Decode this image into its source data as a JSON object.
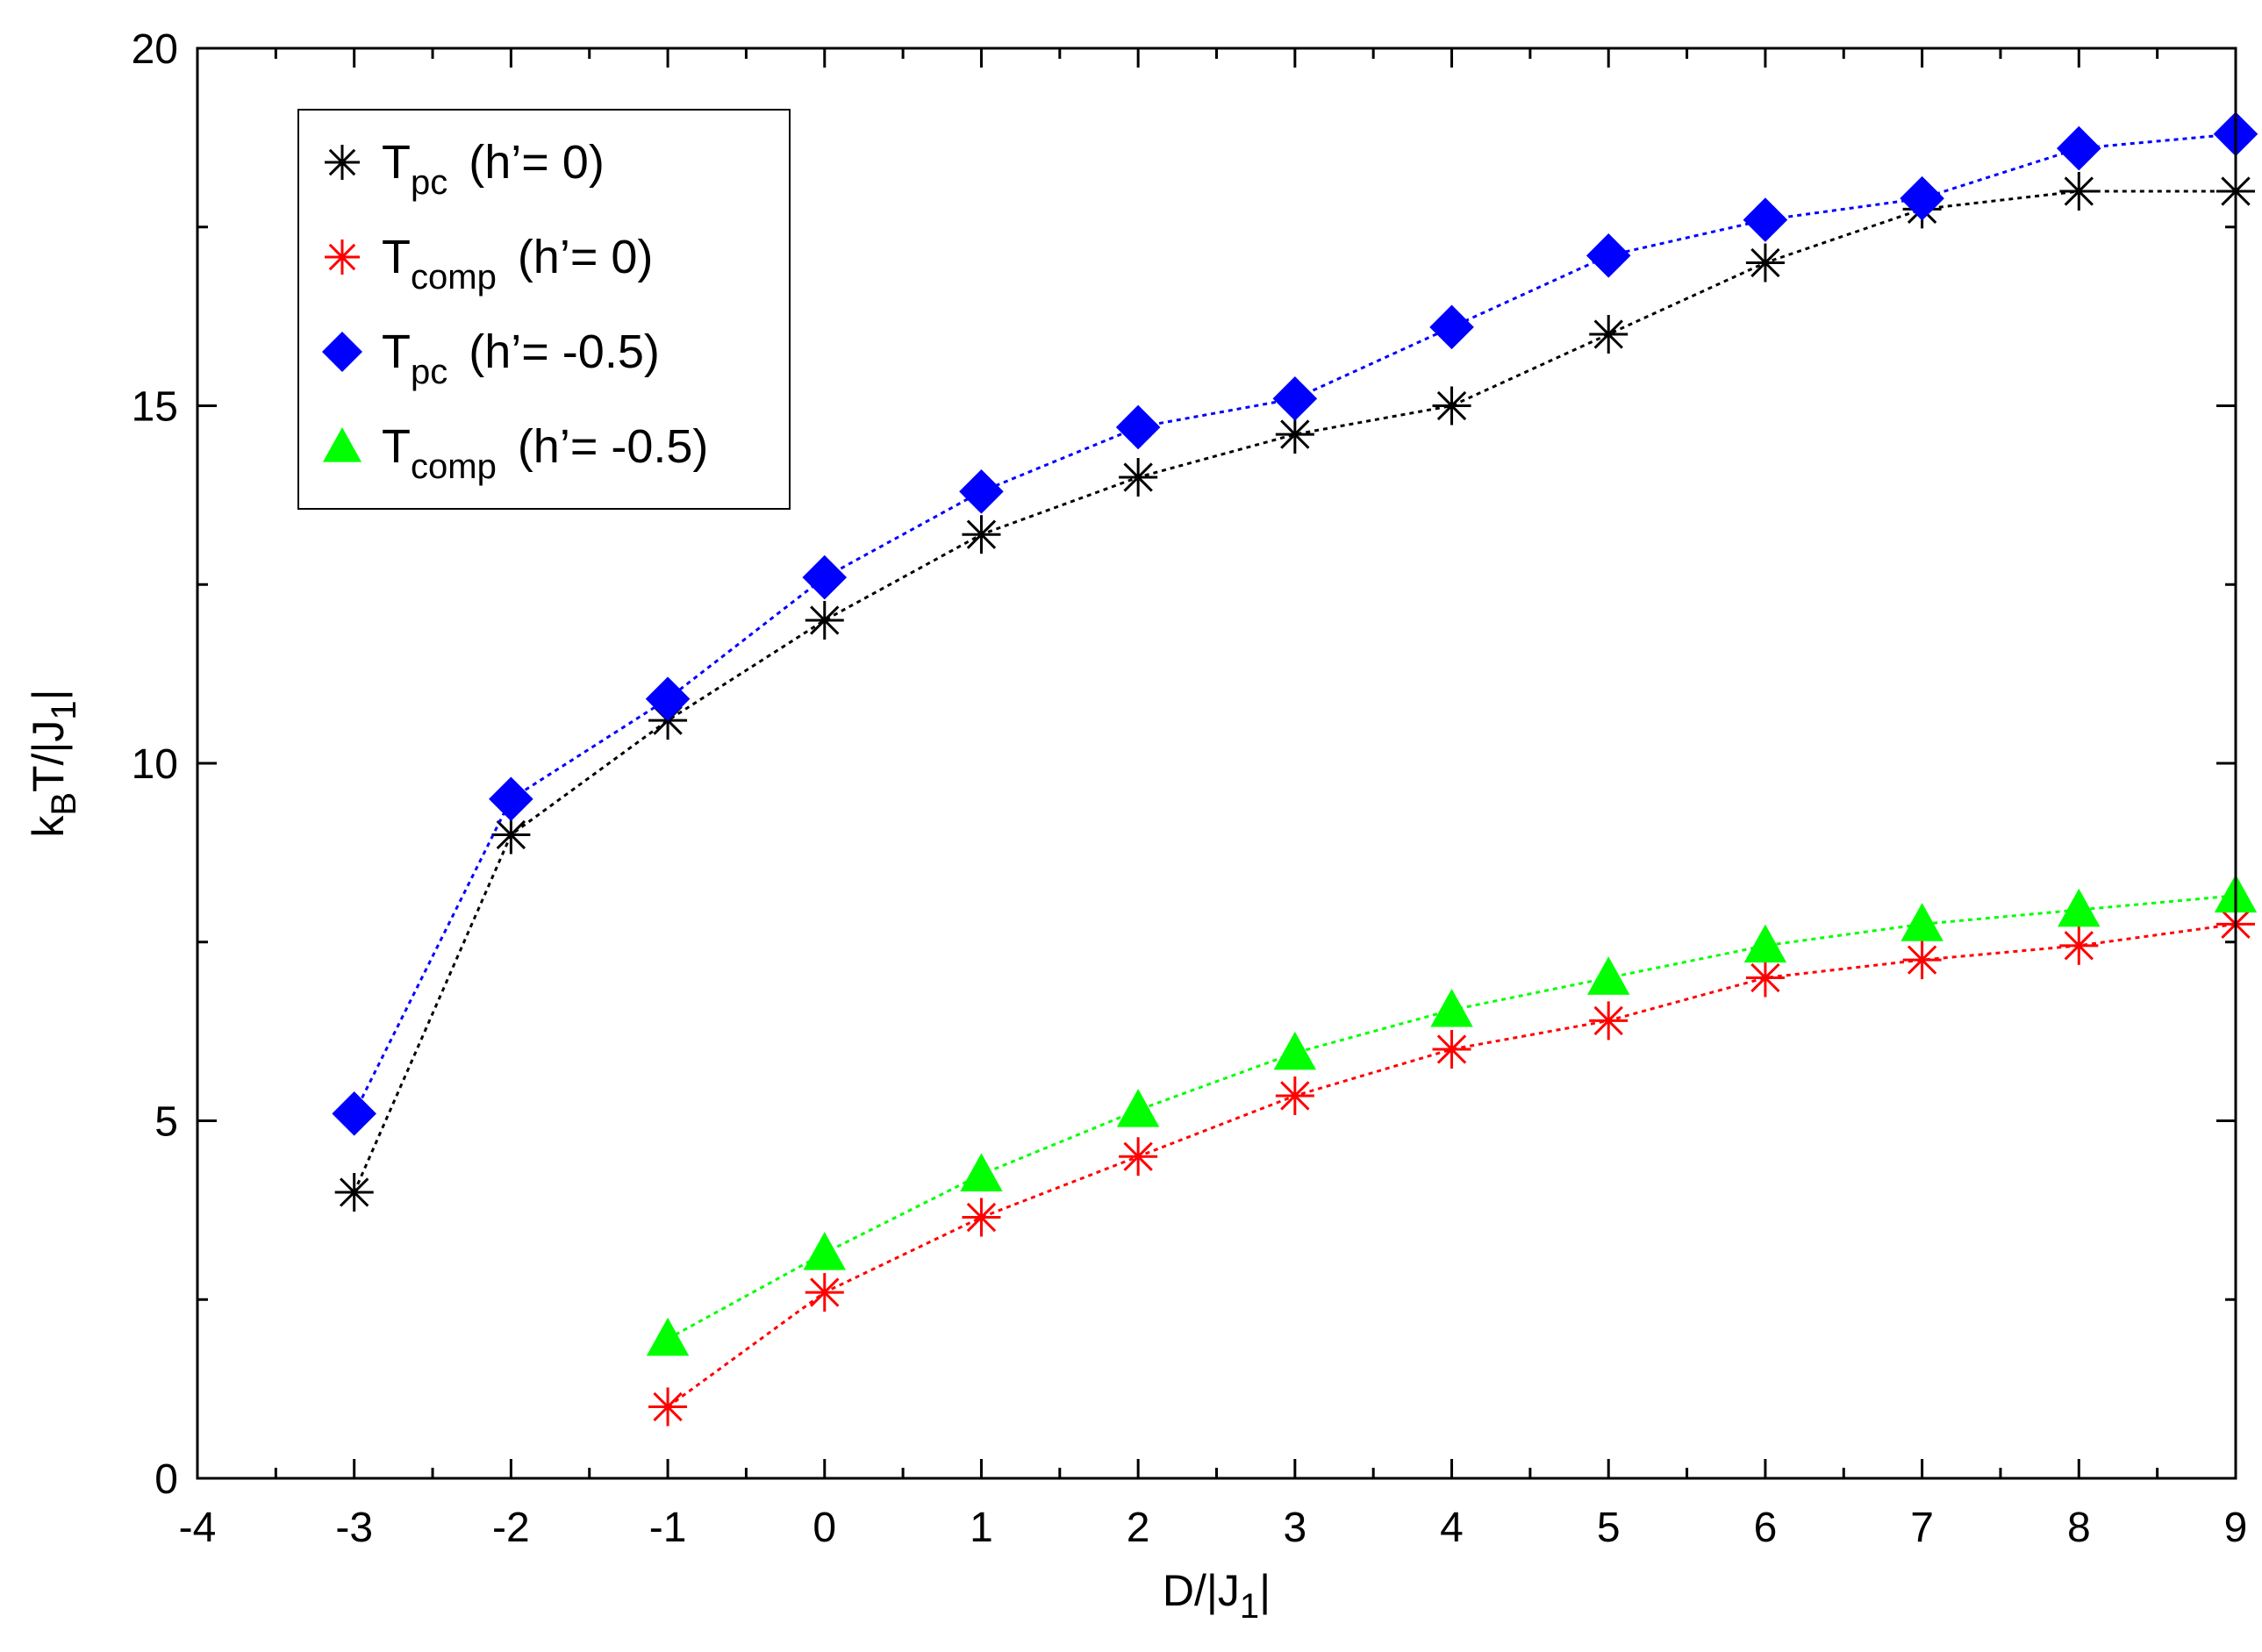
{
  "chart_data": {
    "type": "line",
    "title": "",
    "xlabel": {
      "main": "D/|J",
      "sub": "1",
      "tail": "|"
    },
    "ylabel": {
      "pre": "k",
      "sub1": "B",
      "mid": "T/|J",
      "sub2": "1",
      "tail": "|"
    },
    "xlim": [
      -4,
      9
    ],
    "ylim": [
      0,
      20
    ],
    "x_ticks": [
      -4,
      -3,
      -2,
      -1,
      0,
      1,
      2,
      3,
      4,
      5,
      6,
      7,
      8,
      9
    ],
    "y_ticks": [
      0,
      5,
      10,
      15,
      20
    ],
    "grid": false,
    "legend_position": "top-left",
    "series": [
      {
        "name": {
          "base": "T",
          "sub": "pc",
          "rest": "(h’= 0)"
        },
        "color": "#000000",
        "marker": "asterisk",
        "x": [
          -3,
          -2,
          -1,
          0,
          1,
          2,
          3,
          4,
          5,
          6,
          7,
          8,
          9
        ],
        "y": [
          4.0,
          9.0,
          10.6,
          12.0,
          13.2,
          14.0,
          14.6,
          15.0,
          16.0,
          17.0,
          17.75,
          18.0,
          18.0
        ]
      },
      {
        "name": {
          "base": "T",
          "sub": "comp",
          "rest": "(h’= 0)"
        },
        "color": "#ff0000",
        "marker": "asterisk",
        "x": [
          -1,
          0,
          1,
          2,
          3,
          4,
          5,
          6,
          7,
          8,
          9
        ],
        "y": [
          1.0,
          2.6,
          3.65,
          4.5,
          5.35,
          6.0,
          6.4,
          7.0,
          7.25,
          7.45,
          7.75
        ]
      },
      {
        "name": {
          "base": "T",
          "sub": "pc",
          "rest": "(h’= -0.5)"
        },
        "color": "#0000ff",
        "marker": "diamond",
        "x": [
          -3,
          -2,
          -1,
          0,
          1,
          2,
          3,
          4,
          5,
          6,
          7,
          8,
          9
        ],
        "y": [
          5.1,
          9.5,
          10.9,
          12.6,
          13.8,
          14.7,
          15.1,
          16.1,
          17.1,
          17.6,
          17.9,
          18.6,
          18.8
        ]
      },
      {
        "name": {
          "base": "T",
          "sub": "comp",
          "rest": "(h’= -0.5)"
        },
        "color": "#00ff00",
        "marker": "triangle",
        "x": [
          -1,
          0,
          1,
          2,
          3,
          4,
          5,
          6,
          7,
          8,
          9
        ],
        "y": [
          1.95,
          3.15,
          4.25,
          5.15,
          5.95,
          6.55,
          7.0,
          7.45,
          7.75,
          7.95,
          8.15
        ]
      }
    ]
  }
}
